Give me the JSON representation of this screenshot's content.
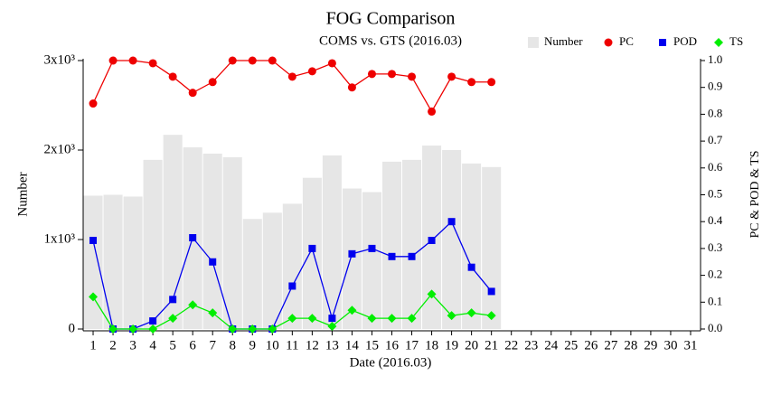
{
  "chart_data": {
    "type": "bar",
    "title": "FOG Comparison",
    "subtitle": "COMS vs. GTS (2016.03)",
    "xlabel": "Date (2016.03)",
    "ylabel": "Number",
    "y2label": "PC & POD & TS",
    "categories": [
      "1",
      "2",
      "3",
      "4",
      "5",
      "6",
      "7",
      "8",
      "9",
      "10",
      "11",
      "12",
      "13",
      "14",
      "15",
      "16",
      "17",
      "18",
      "19",
      "20",
      "21",
      "22",
      "23",
      "24",
      "25",
      "26",
      "27",
      "28",
      "29",
      "30",
      "31"
    ],
    "ylim": [
      0,
      3000
    ],
    "yticks": [
      0,
      {
        "value": 1000,
        "label": "1x10³"
      },
      {
        "value": 2000,
        "label": "2x10³"
      },
      {
        "value": 3000,
        "label": "3x10³"
      }
    ],
    "y2lim": [
      0,
      1
    ],
    "y2ticks": [
      {
        "value": 0,
        "label": "0.0"
      },
      0.1,
      0.2,
      0.3,
      0.4,
      0.5,
      0.6,
      0.7,
      0.8,
      0.9,
      {
        "value": 1,
        "label": "1.0"
      }
    ],
    "legend": "top-right",
    "series": [
      {
        "name": "Number",
        "type": "bar",
        "color": "#e6e6e6",
        "axis": "y",
        "values": [
          1490,
          1500,
          1480,
          1890,
          2170,
          2030,
          1960,
          1920,
          1230,
          1300,
          1400,
          1690,
          1940,
          1570,
          1530,
          1870,
          1890,
          2050,
          2000,
          1850,
          1810,
          null,
          null,
          null,
          null,
          null,
          null,
          null,
          null,
          null,
          null
        ]
      },
      {
        "name": "PC",
        "type": "line",
        "marker": "circle",
        "color": "#ee0000",
        "axis": "y2",
        "values": [
          0.84,
          1.0,
          1.0,
          0.99,
          0.94,
          0.88,
          0.92,
          1.0,
          1.0,
          1.0,
          0.94,
          0.96,
          0.99,
          0.9,
          0.95,
          0.95,
          0.94,
          0.81,
          0.94,
          0.92,
          0.92,
          null,
          null,
          null,
          null,
          null,
          null,
          null,
          null,
          null,
          null
        ]
      },
      {
        "name": "POD",
        "type": "line",
        "marker": "square",
        "color": "#0000ee",
        "axis": "y2",
        "values": [
          0.33,
          0,
          0,
          0.03,
          0.11,
          0.34,
          0.25,
          0,
          0,
          0,
          0.16,
          0.3,
          0.04,
          0.28,
          0.3,
          0.27,
          0.27,
          0.33,
          0.4,
          0.23,
          0.14,
          null,
          null,
          null,
          null,
          null,
          null,
          null,
          null,
          null,
          null
        ]
      },
      {
        "name": "TS",
        "type": "line",
        "marker": "diamond",
        "color": "#00ee00",
        "axis": "y2",
        "values": [
          0.12,
          0,
          0,
          0,
          0.04,
          0.09,
          0.06,
          0,
          0,
          0,
          0.04,
          0.04,
          0.01,
          0.07,
          0.04,
          0.04,
          0.04,
          0.13,
          0.05,
          0.06,
          0.05,
          null,
          null,
          null,
          null,
          null,
          null,
          null,
          null,
          null,
          null
        ]
      }
    ]
  }
}
